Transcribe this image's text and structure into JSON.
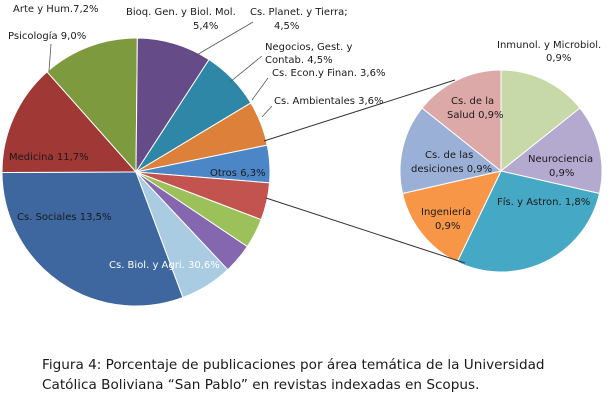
{
  "chart_data": [
    {
      "type": "pie",
      "slices": [
        {
          "label": "Cs. Biol. y Agri. 30,6%",
          "value": 30.6,
          "color": "#3E669F"
        },
        {
          "label": "Cs. Sociales 13,5%",
          "value": 13.5,
          "color": "#A03835"
        },
        {
          "label": "Medicina 11,7%",
          "value": 11.7,
          "color": "#7D9A3E"
        },
        {
          "label": "Psicología 9,0%",
          "value": 9.0,
          "color": "#654B87"
        },
        {
          "label": "Arte y Hum.7,2%",
          "value": 7.2,
          "color": "#2F87A7"
        },
        {
          "label": "Bioq. Gen. y Biol. Mol. 5,4%",
          "value": 5.4,
          "color": "#DC803A"
        },
        {
          "label": "Cs. Planet. y Tierra; 4,5%",
          "value": 4.5,
          "color": "#4B86C6"
        },
        {
          "label": "Negocios, Gest. y Contab. 4,5%",
          "value": 4.5,
          "color": "#C3534E"
        },
        {
          "label": "Cs. Econ.y Finan. 3,6%",
          "value": 3.6,
          "color": "#9DC15A"
        },
        {
          "label": "Cs. Ambientales 3,6%",
          "value": 3.6,
          "color": "#8467AE"
        },
        {
          "label": "Otros 6,3%",
          "value": 6.3,
          "color": "#A9CCE3"
        }
      ]
    },
    {
      "type": "pie",
      "slices": [
        {
          "label": "Inmunol. y Microbiol. 0,9%",
          "value": 0.9,
          "color": "#C7D9A8"
        },
        {
          "label": "Neurociencia 0,9%",
          "value": 0.9,
          "color": "#B4A9CF"
        },
        {
          "label": "Fís. y Astron. 1,8%",
          "value": 1.8,
          "color": "#45A9C6"
        },
        {
          "label": "Ingeniería 0,9%",
          "value": 0.9,
          "color": "#F79646"
        },
        {
          "label": "Cs. de las desiciones 0,9%",
          "value": 0.9,
          "color": "#9BB0D6"
        },
        {
          "label": "Cs. de la Salud 0,9%",
          "value": 0.9,
          "color": "#DDA9A8"
        }
      ]
    }
  ],
  "labels": {
    "main": [
      {
        "lines": [
          "Arte y Hum.7,2%"
        ]
      },
      {
        "lines": [
          "Bioq. Gen. y Biol. Mol.",
          "5,4%"
        ]
      },
      {
        "lines": [
          "Cs. Planet. y Tierra;",
          "4,5%"
        ]
      },
      {
        "lines": [
          "Psicología  9,0%"
        ]
      },
      {
        "lines": [
          "Negocios, Gest. y",
          "Contab. 4,5%"
        ]
      },
      {
        "lines": [
          "Cs. Econ.y Finan. 3,6%"
        ]
      },
      {
        "lines": [
          "Cs. Ambientales 3,6%"
        ]
      },
      {
        "lines": [
          "Medicina 11,7%"
        ]
      },
      {
        "lines": [
          "Otros 6,3%"
        ]
      },
      {
        "lines": [
          "Cs. Sociales 13,5%"
        ]
      },
      {
        "lines": [
          "Cs. Biol. y Agri. 30,6%"
        ]
      }
    ],
    "sub": [
      {
        "lines": [
          "Inmunol. y Microbiol.",
          "0,9%"
        ]
      },
      {
        "lines": [
          "Cs. de la",
          "Salud 0,9%"
        ]
      },
      {
        "lines": [
          "Cs. de las",
          "desiciones 0,9%"
        ]
      },
      {
        "lines": [
          "Neurociencia",
          "0,9%"
        ]
      },
      {
        "lines": [
          "Fís. y Astron. 1,8%"
        ]
      },
      {
        "lines": [
          "Ingeniería",
          "0,9%"
        ]
      }
    ]
  },
  "caption": "Figura 4: Porcentaje de publicaciones por área temática de la Universidad Católica Boliviana “San Pablo” en revistas indexadas en Scopus."
}
